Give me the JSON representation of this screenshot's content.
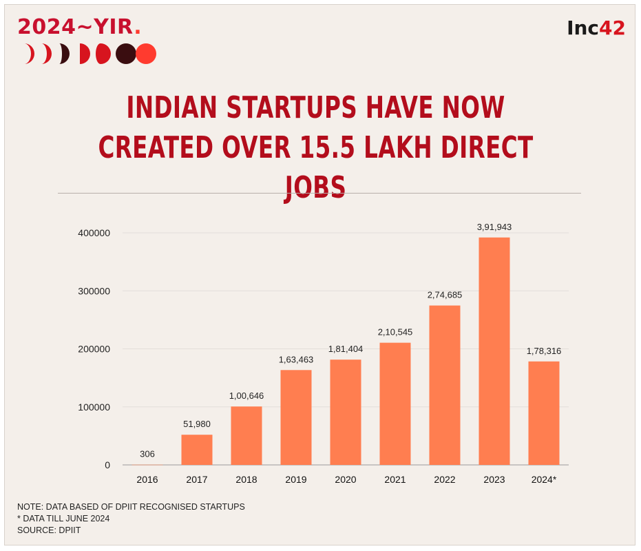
{
  "brand": {
    "text": "2024~YIR",
    "dot": "."
  },
  "logo": {
    "prefix": "Inc",
    "accent": "42"
  },
  "headline": {
    "line1": "INDIAN STARTUPS HAVE NOW",
    "line2": "CREATED OVER  15.5 LAKH DIRECT JOBS"
  },
  "colors": {
    "bar": "#ff7e50",
    "headline": "#b30d1c",
    "brand_red": "#c8102e",
    "moon_dark": "#3a0d10"
  },
  "chart_data": {
    "type": "bar",
    "categories": [
      "2016",
      "2017",
      "2018",
      "2019",
      "2020",
      "2021",
      "2022",
      "2023",
      "2024*"
    ],
    "values": [
      306,
      51980,
      100646,
      163463,
      181404,
      210545,
      274685,
      391943,
      178316
    ],
    "data_labels": [
      "306",
      "51,980",
      "1,00,646",
      "1,63,463",
      "1,81,404",
      "2,10,545",
      "2,74,685",
      "3,91,943",
      "1,78,316"
    ],
    "y_ticks": [
      "0",
      "100000",
      "200000",
      "300000",
      "400000"
    ],
    "ylim": [
      0,
      400000
    ],
    "grid": true,
    "title": "",
    "xlabel": "",
    "ylabel": ""
  },
  "notes": {
    "line1": "NOTE: DATA BASED OF DPIIT RECOGNISED STARTUPS",
    "line2": "* DATA TILL JUNE 2024",
    "line3": "SOURCE: DPIIT"
  }
}
